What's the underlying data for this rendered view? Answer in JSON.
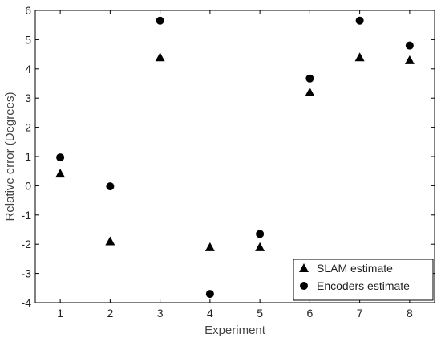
{
  "chart_data": {
    "type": "scatter",
    "title": "",
    "xlabel": "Experiment",
    "ylabel": "Relative error (Degrees)",
    "xlim": [
      0.5,
      8.5
    ],
    "ylim": [
      -4,
      6
    ],
    "xticks": [
      1,
      2,
      3,
      4,
      5,
      6,
      7,
      8
    ],
    "yticks": [
      -4,
      -3,
      -2,
      -1,
      0,
      1,
      2,
      3,
      4,
      5,
      6
    ],
    "grid": false,
    "legend_position": "bottom-right",
    "series": [
      {
        "name": "SLAM estimate",
        "marker": "triangle",
        "color": "#000000",
        "x": [
          1,
          2,
          3,
          4,
          5,
          6,
          7,
          8
        ],
        "y": [
          0.42,
          -1.9,
          4.4,
          -2.1,
          -2.1,
          3.2,
          4.4,
          4.3
        ]
      },
      {
        "name": "Encoders estimate",
        "marker": "circle",
        "color": "#000000",
        "x": [
          1,
          2,
          3,
          4,
          5,
          6,
          7,
          8
        ],
        "y": [
          0.97,
          -0.02,
          5.65,
          -3.7,
          -1.65,
          3.67,
          5.65,
          4.8
        ]
      }
    ]
  }
}
